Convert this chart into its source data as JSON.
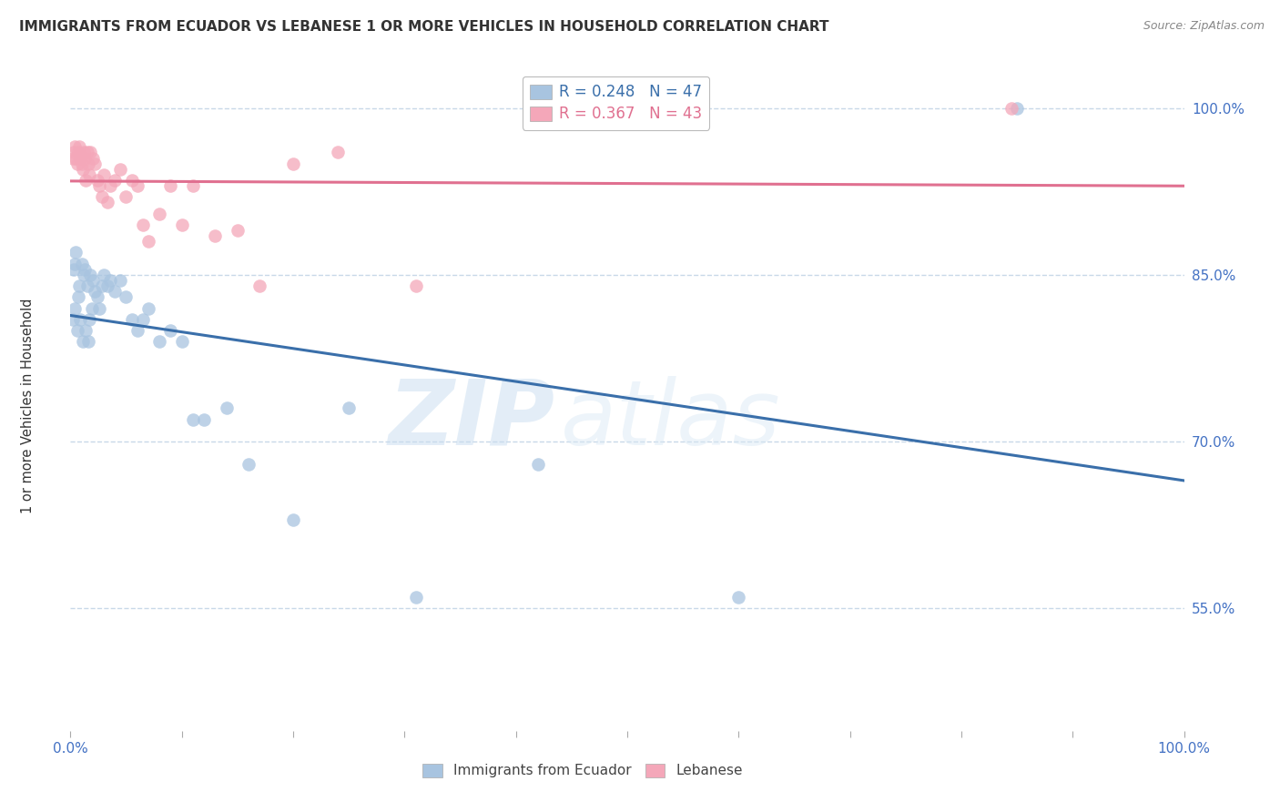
{
  "title": "IMMIGRANTS FROM ECUADOR VS LEBANESE 1 OR MORE VEHICLES IN HOUSEHOLD CORRELATION CHART",
  "source": "Source: ZipAtlas.com",
  "ylabel": "1 or more Vehicles in Household",
  "legend_label1": "Immigrants from Ecuador",
  "legend_label2": "Lebanese",
  "R_ecuador": 0.248,
  "N_ecuador": 47,
  "R_lebanese": 0.367,
  "N_lebanese": 43,
  "ecuador_color": "#a8c4e0",
  "lebanese_color": "#f4a7b9",
  "ecuador_line_color": "#3a6faa",
  "lebanese_line_color": "#e07090",
  "ecuador_points_x": [
    0.002,
    0.003,
    0.004,
    0.004,
    0.005,
    0.006,
    0.007,
    0.008,
    0.009,
    0.01,
    0.011,
    0.012,
    0.013,
    0.014,
    0.015,
    0.016,
    0.017,
    0.018,
    0.019,
    0.02,
    0.022,
    0.024,
    0.026,
    0.028,
    0.03,
    0.033,
    0.036,
    0.04,
    0.045,
    0.05,
    0.055,
    0.06,
    0.065,
    0.07,
    0.08,
    0.09,
    0.1,
    0.11,
    0.12,
    0.14,
    0.16,
    0.2,
    0.25,
    0.31,
    0.42,
    0.6,
    0.85
  ],
  "ecuador_points_y": [
    0.81,
    0.855,
    0.86,
    0.82,
    0.87,
    0.8,
    0.83,
    0.84,
    0.81,
    0.86,
    0.79,
    0.85,
    0.855,
    0.8,
    0.84,
    0.79,
    0.81,
    0.85,
    0.82,
    0.845,
    0.835,
    0.83,
    0.82,
    0.84,
    0.85,
    0.84,
    0.845,
    0.835,
    0.845,
    0.83,
    0.81,
    0.8,
    0.81,
    0.82,
    0.79,
    0.8,
    0.79,
    0.72,
    0.72,
    0.73,
    0.68,
    0.63,
    0.73,
    0.56,
    0.68,
    0.56,
    1.0
  ],
  "lebanese_points_x": [
    0.002,
    0.003,
    0.004,
    0.005,
    0.006,
    0.007,
    0.008,
    0.009,
    0.01,
    0.011,
    0.012,
    0.013,
    0.014,
    0.015,
    0.016,
    0.017,
    0.018,
    0.02,
    0.022,
    0.024,
    0.026,
    0.028,
    0.03,
    0.033,
    0.036,
    0.04,
    0.045,
    0.05,
    0.055,
    0.06,
    0.065,
    0.07,
    0.08,
    0.09,
    0.1,
    0.11,
    0.13,
    0.15,
    0.17,
    0.2,
    0.24,
    0.31,
    0.845
  ],
  "lebanese_points_y": [
    0.955,
    0.96,
    0.965,
    0.955,
    0.95,
    0.96,
    0.965,
    0.955,
    0.95,
    0.945,
    0.96,
    0.955,
    0.935,
    0.96,
    0.95,
    0.94,
    0.96,
    0.955,
    0.95,
    0.935,
    0.93,
    0.92,
    0.94,
    0.915,
    0.93,
    0.935,
    0.945,
    0.92,
    0.935,
    0.93,
    0.895,
    0.88,
    0.905,
    0.93,
    0.895,
    0.93,
    0.885,
    0.89,
    0.84,
    0.95,
    0.96,
    0.84,
    1.0
  ],
  "background_color": "#ffffff",
  "grid_color": "#c8d8e8",
  "watermark_ZIP": "ZIP",
  "watermark_atlas": "atlas",
  "xlim": [
    0.0,
    1.0
  ],
  "ylim": [
    0.44,
    1.035
  ],
  "ytick_values": [
    0.55,
    0.7,
    0.85,
    1.0
  ],
  "ytick_labels": [
    "55.0%",
    "70.0%",
    "85.0%",
    "100.0%"
  ]
}
